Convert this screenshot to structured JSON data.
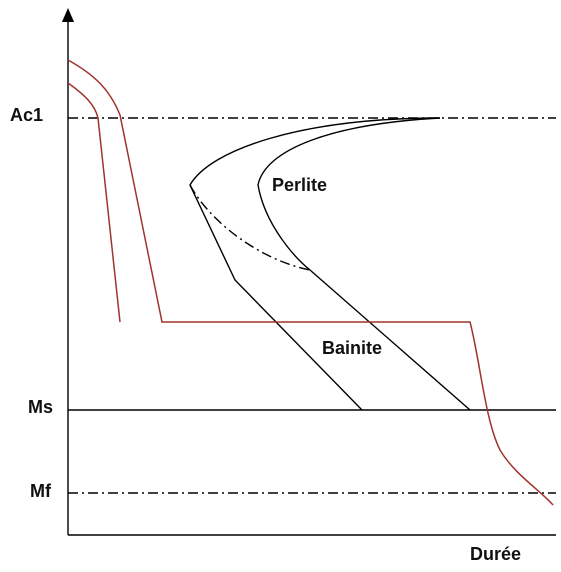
{
  "labels": {
    "ac1": "Ac1",
    "ms": "Ms",
    "mf": "Mf",
    "perlite": "Perlite",
    "bainite": "Bainite",
    "x_axis": "Durée"
  }
}
